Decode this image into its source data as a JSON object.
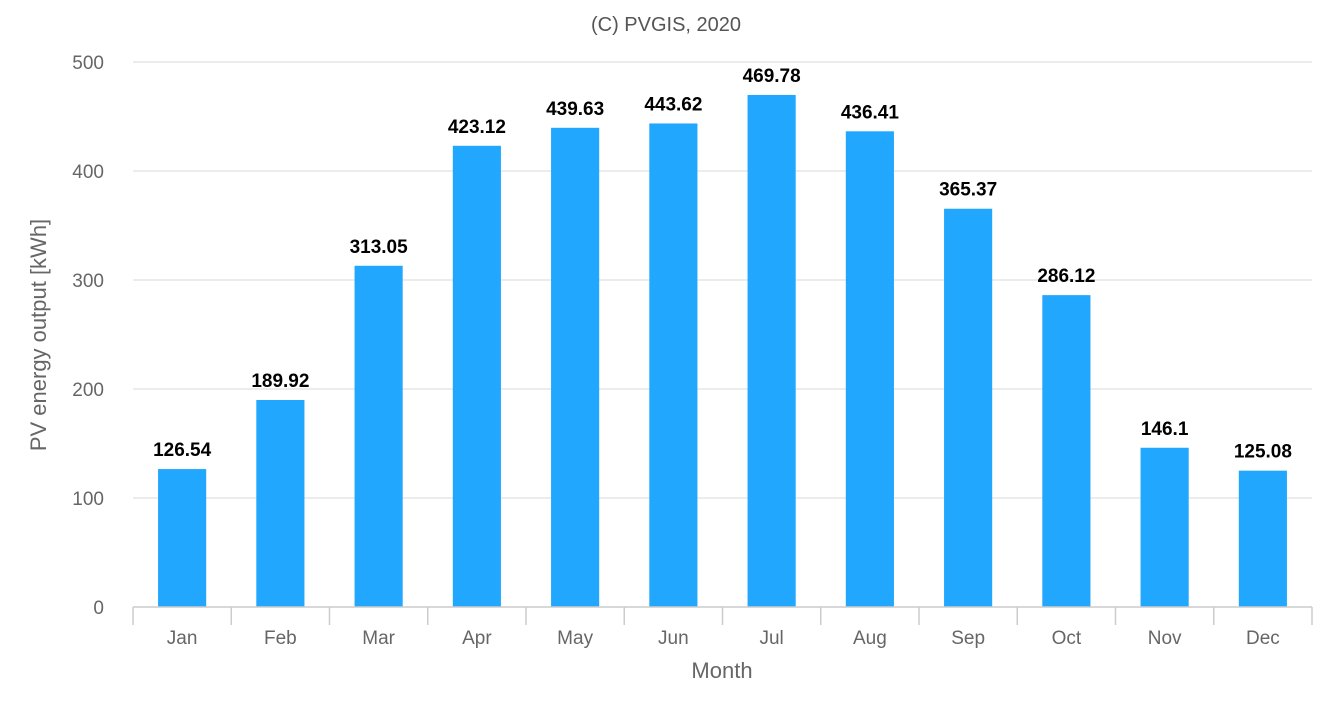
{
  "chart_data": {
    "type": "bar",
    "title": "(C) PVGIS, 2020",
    "xlabel": "Month",
    "ylabel": "PV energy output [kWh]",
    "categories": [
      "Jan",
      "Feb",
      "Mar",
      "Apr",
      "May",
      "Jun",
      "Jul",
      "Aug",
      "Sep",
      "Oct",
      "Nov",
      "Dec"
    ],
    "values": [
      126.54,
      189.92,
      313.05,
      423.12,
      439.63,
      443.62,
      469.78,
      436.41,
      365.37,
      286.12,
      146.1,
      125.08
    ],
    "data_labels": [
      "126.54",
      "189.92",
      "313.05",
      "423.12",
      "439.63",
      "443.62",
      "469.78",
      "436.41",
      "365.37",
      "286.12",
      "146.1",
      "125.08"
    ],
    "ylim": [
      0,
      500
    ],
    "yticks": [
      0,
      100,
      200,
      300,
      400,
      500
    ],
    "grid": true,
    "legend": "none",
    "colors": {
      "bar": "#22a7fe"
    }
  }
}
